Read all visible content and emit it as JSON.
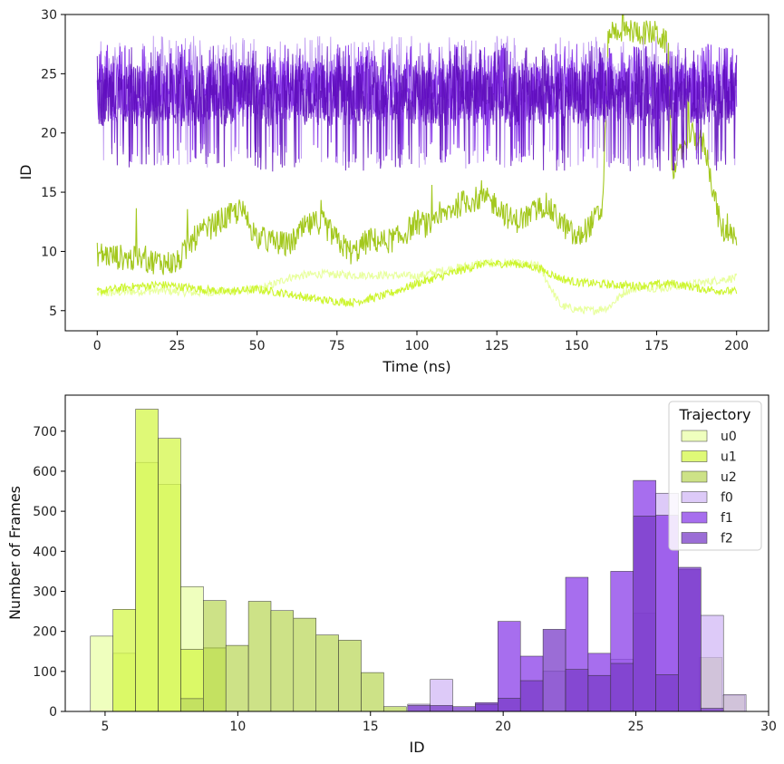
{
  "chart_data": [
    {
      "type": "line",
      "xlabel": "Time (ns)",
      "ylabel": "ID",
      "xlim": [
        -10,
        210
      ],
      "ylim": [
        3.3,
        30
      ],
      "xticks": [
        0,
        25,
        50,
        75,
        100,
        125,
        150,
        175,
        200
      ],
      "yticks": [
        5,
        10,
        15,
        20,
        25,
        30
      ],
      "series": [
        {
          "color": "#e8ff9c",
          "kind": "low",
          "x": [
            0,
            10,
            20,
            30,
            40,
            50,
            55,
            60,
            65,
            70,
            80,
            90,
            100,
            110,
            120,
            130,
            138,
            145,
            150,
            155,
            160,
            165,
            170,
            175,
            180,
            190,
            200
          ],
          "y": [
            6.4,
            6.6,
            6.7,
            6.5,
            6.6,
            6.8,
            7.2,
            7.8,
            8.0,
            8.1,
            8.0,
            8.0,
            7.9,
            8.5,
            9.0,
            9.0,
            8.8,
            5.4,
            5.1,
            5.0,
            5.3,
            6.6,
            7.0,
            6.9,
            7.0,
            7.4,
            7.8
          ],
          "noise": 0.35
        },
        {
          "color": "#cdf52e",
          "kind": "low",
          "x": [
            0,
            10,
            20,
            30,
            40,
            50,
            60,
            70,
            80,
            90,
            100,
            110,
            120,
            130,
            138,
            145,
            150,
            160,
            170,
            180,
            190,
            200
          ],
          "y": [
            6.6,
            7.0,
            7.2,
            6.9,
            6.6,
            6.8,
            6.4,
            5.9,
            5.7,
            6.3,
            7.3,
            8.1,
            8.9,
            9.0,
            8.6,
            7.7,
            7.4,
            7.2,
            7.1,
            7.3,
            6.8,
            6.6
          ],
          "noise": 0.35
        },
        {
          "color": "#a3c81e",
          "kind": "mid",
          "x": [
            0,
            10,
            20,
            25,
            30,
            35,
            40,
            45,
            50,
            55,
            60,
            65,
            70,
            75,
            80,
            85,
            90,
            95,
            100,
            105,
            110,
            115,
            120,
            125,
            130,
            135,
            140,
            145,
            150,
            155,
            158,
            160,
            163,
            170,
            175,
            178,
            180,
            185,
            190,
            195,
            200
          ],
          "y": [
            9.8,
            9.4,
            9.1,
            9.0,
            11.0,
            12.0,
            12.8,
            13.5,
            11.2,
            10.8,
            10.5,
            12.0,
            12.6,
            10.9,
            9.8,
            11.0,
            10.8,
            11.2,
            12.5,
            12.0,
            13.5,
            14.2,
            14.5,
            14.0,
            12.5,
            13.0,
            14.0,
            12.5,
            11.0,
            12.5,
            13.5,
            28.5,
            28.7,
            28.5,
            28.4,
            27.5,
            16.5,
            20.0,
            19.0,
            12.0,
            10.8
          ],
          "noise": 1.1
        },
        {
          "color": "#b890f0",
          "kind": "high",
          "center": 23.8,
          "amp": 4.0,
          "x": [
            0,
            200
          ],
          "y": [
            23.8,
            23.8
          ]
        },
        {
          "color": "#7a1fe6",
          "kind": "high",
          "center": 23.6,
          "amp": 3.6,
          "x": [
            0,
            200
          ],
          "y": [
            23.6,
            23.6
          ]
        },
        {
          "color": "#5a08b8",
          "kind": "high",
          "center": 23.2,
          "amp": 3.8,
          "x": [
            0,
            200
          ],
          "y": [
            23.2,
            23.2
          ]
        }
      ]
    },
    {
      "type": "bar",
      "xlabel": "ID",
      "ylabel": "Number of Frames",
      "xlim": [
        3.5,
        30
      ],
      "ylim": [
        0,
        790
      ],
      "xticks": [
        5,
        10,
        15,
        20,
        25,
        30
      ],
      "yticks": [
        0,
        100,
        200,
        300,
        400,
        500,
        600,
        700
      ],
      "bin_width": 0.85,
      "legend_title": "Trajectory",
      "legend_position": "top-right",
      "series": [
        {
          "name": "u0",
          "color": "#eaffa8",
          "bins": [
            {
              "x": 4.45,
              "v": 188
            },
            {
              "x": 5.3,
              "v": 145
            },
            {
              "x": 6.15,
              "v": 622
            },
            {
              "x": 7.0,
              "v": 567
            },
            {
              "x": 7.85,
              "v": 312
            },
            {
              "x": 8.7,
              "v": 160
            }
          ]
        },
        {
          "name": "u1",
          "color": "#d4f74a",
          "bins": [
            {
              "x": 5.3,
              "v": 255
            },
            {
              "x": 6.15,
              "v": 755
            },
            {
              "x": 7.0,
              "v": 682
            },
            {
              "x": 7.85,
              "v": 155
            },
            {
              "x": 8.7,
              "v": 158
            }
          ]
        },
        {
          "name": "u2",
          "color": "#bcd85f",
          "bins": [
            {
              "x": 7.85,
              "v": 32
            },
            {
              "x": 8.7,
              "v": 277
            },
            {
              "x": 9.55,
              "v": 165
            },
            {
              "x": 10.4,
              "v": 275
            },
            {
              "x": 11.25,
              "v": 252
            },
            {
              "x": 12.1,
              "v": 233
            },
            {
              "x": 12.95,
              "v": 191
            },
            {
              "x": 13.8,
              "v": 178
            },
            {
              "x": 14.65,
              "v": 97
            },
            {
              "x": 15.5,
              "v": 12
            },
            {
              "x": 27.4,
              "v": 135
            },
            {
              "x": 28.25,
              "v": 40
            }
          ]
        },
        {
          "name": "f0",
          "color": "#d1b8f5",
          "bins": [
            {
              "x": 16.4,
              "v": 18
            },
            {
              "x": 17.25,
              "v": 80
            },
            {
              "x": 21.5,
              "v": 100
            },
            {
              "x": 24.05,
              "v": 130
            },
            {
              "x": 24.9,
              "v": 245
            },
            {
              "x": 25.75,
              "v": 545
            },
            {
              "x": 27.45,
              "v": 240
            },
            {
              "x": 28.3,
              "v": 42
            }
          ]
        },
        {
          "name": "f1",
          "color": "#8a3ee8",
          "bins": [
            {
              "x": 18.95,
              "v": 22
            },
            {
              "x": 19.8,
              "v": 225
            },
            {
              "x": 20.65,
              "v": 138
            },
            {
              "x": 22.35,
              "v": 335
            },
            {
              "x": 23.2,
              "v": 145
            },
            {
              "x": 24.05,
              "v": 350
            },
            {
              "x": 24.9,
              "v": 577
            },
            {
              "x": 25.75,
              "v": 490
            },
            {
              "x": 26.6,
              "v": 355
            }
          ]
        },
        {
          "name": "f2",
          "color": "#7a3cc8",
          "bins": [
            {
              "x": 16.4,
              "v": 15
            },
            {
              "x": 17.25,
              "v": 15
            },
            {
              "x": 18.1,
              "v": 12
            },
            {
              "x": 18.95,
              "v": 18
            },
            {
              "x": 19.8,
              "v": 33
            },
            {
              "x": 20.65,
              "v": 77
            },
            {
              "x": 21.5,
              "v": 205
            },
            {
              "x": 22.35,
              "v": 105
            },
            {
              "x": 23.2,
              "v": 90
            },
            {
              "x": 24.05,
              "v": 120
            },
            {
              "x": 24.9,
              "v": 488
            },
            {
              "x": 25.75,
              "v": 92
            },
            {
              "x": 26.6,
              "v": 360
            },
            {
              "x": 27.45,
              "v": 8
            }
          ]
        }
      ]
    }
  ]
}
